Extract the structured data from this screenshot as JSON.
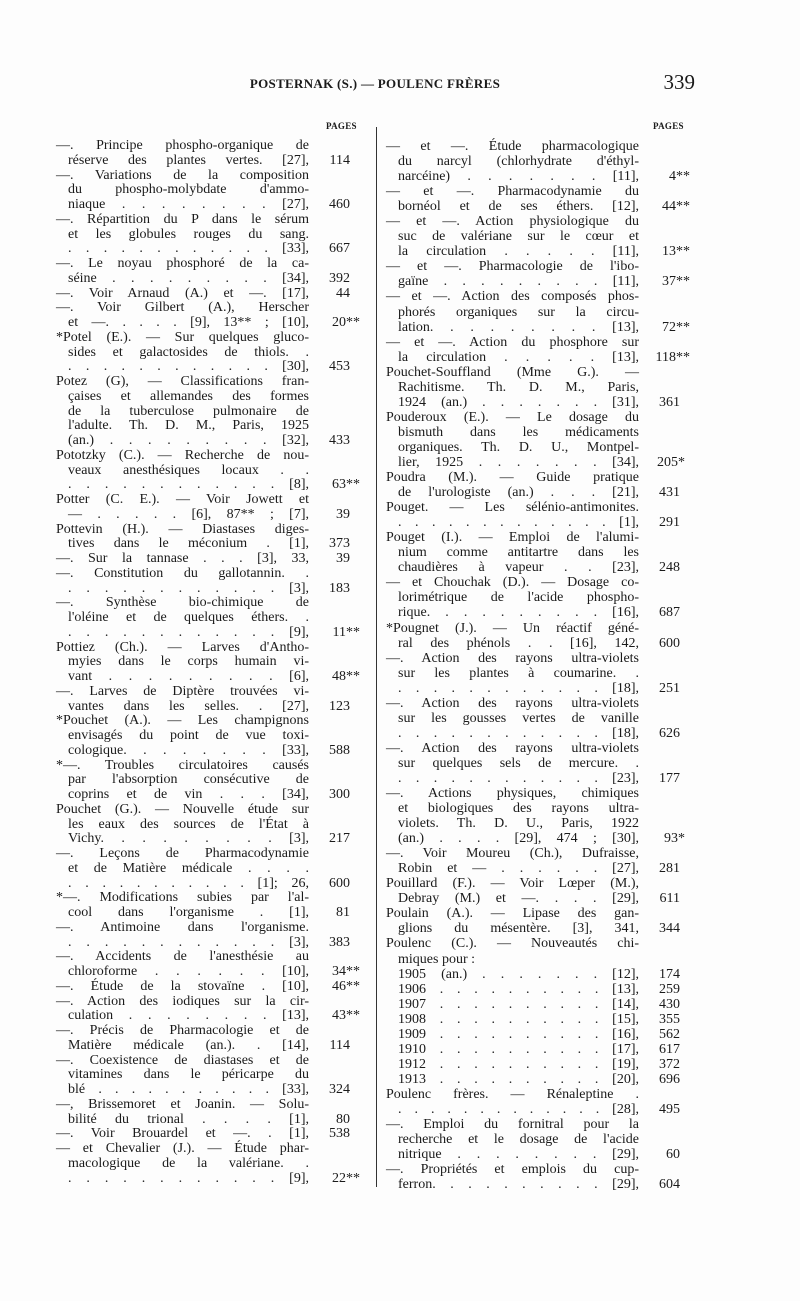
{
  "header": {
    "title": "POSTERNAK (S.) — POULENC FRÈRES",
    "page_number": "339"
  },
  "pages_label": "PAGES",
  "left_column": [
    {
      "lines": [
        "—. Principe phospho-organique de",
        "réserve des plantes vertes. [27],"
      ],
      "page": "114"
    },
    {
      "lines": [
        "—. Variations de la composition",
        "du phospho-molybdate d'ammo-",
        "niaque . . . . . . . . [27],"
      ],
      "page": "460"
    },
    {
      "lines": [
        "—. Répartition du P dans le sérum",
        "et les globules rouges du sang.",
        ". . . . . . . . . . . . [33],"
      ],
      "page": "667"
    },
    {
      "lines": [
        "—. Le noyau phosphoré de la ca-",
        "séine . . . . . . . . . [34],"
      ],
      "page": "392"
    },
    {
      "lines": [
        "—. Voir Arnaud (A.) et —. [17],"
      ],
      "page": "44"
    },
    {
      "lines": [
        "—. Voir Gilbert (A.), Herscher",
        "et —. . . . . [9], 13** ; [10],"
      ],
      "page": "20**"
    },
    {
      "lines": [
        "*Potel (E.). — Sur quelques gluco-",
        "sides et galactosides de thiols. .",
        ". . . . . . . . . . . . [30],"
      ],
      "page": "453"
    },
    {
      "lines": [
        "Potez (G), — Classifications fran-",
        "çaises et allemandes des formes",
        "de la tuberculose pulmonaire de",
        "l'adulte. Th. D. M., Paris, 1925",
        "(an.) . . . . . . . . . [32],"
      ],
      "page": "433"
    },
    {
      "lines": [
        "Pototzky (C.). — Recherche de nou-",
        "veaux anesthésiques locaux . .",
        ". . . . . . . . . . . . [8],"
      ],
      "page": "63**"
    },
    {
      "lines": [
        "Potter (C. E.). — Voir Jowett et",
        "— . . . . . [6], 87** ; [7],"
      ],
      "page": "39"
    },
    {
      "lines": [
        "Pottevin (H.). — Diastases diges-",
        "tives dans le méconium . [1],"
      ],
      "page": "373"
    },
    {
      "lines": [
        "—. Sur la tannase . . . [3], 33,"
      ],
      "page": "39"
    },
    {
      "lines": [
        "—. Constitution du gallotannin. .",
        ". . . . . . . . . . . . [3],"
      ],
      "page": "183"
    },
    {
      "lines": [
        "—. Synthèse bio-chimique de",
        "l'oléine et de quelques éthers. .",
        ". . . . . . . . . . . . [9],"
      ],
      "page": "11**"
    },
    {
      "lines": [
        "Pottiez (Ch.). — Larves d'Antho-",
        "myies dans le corps humain vi-",
        "vant . . . . . . . . . [6],"
      ],
      "page": "48**"
    },
    {
      "lines": [
        "—. Larves de Diptère trouvées vi-",
        "vantes dans les selles. . [27],"
      ],
      "page": "123"
    },
    {
      "lines": [
        "*Pouchet (A.). — Les champignons",
        "envisagés du point de vue toxi-",
        "cologique. . . . . . . . [33],"
      ],
      "page": "588"
    },
    {
      "lines": [
        "*—. Troubles circulatoires causés",
        "par l'absorption consécutive de",
        "coprins et de vin . . . [34],"
      ],
      "page": "300"
    },
    {
      "lines": [
        "Pouchet (G.). — Nouvelle étude sur",
        "les eaux des sources de l'État à",
        "Vichy. . . . . . . . . [3],"
      ],
      "page": "217"
    },
    {
      "lines": [
        "—. Leçons de Pharmacodynamie",
        "et de Matière médicale . . . .",
        ". . . . . . . . . . . [1]; 26,"
      ],
      "page": "600"
    },
    {
      "lines": [
        "*—. Modifications subies par l'al-",
        "cool dans l'organisme . [1],"
      ],
      "page": "81"
    },
    {
      "lines": [
        "—. Antimoine dans l'organisme.",
        ". . . . . . . . . . . . [3],"
      ],
      "page": "383"
    },
    {
      "lines": [
        "—. Accidents de l'anesthésie au",
        "chloroforme . . . . . . [10],"
      ],
      "page": "34**"
    },
    {
      "lines": [
        "—. Étude de la stovaïne . [10],"
      ],
      "page": "46**"
    },
    {
      "lines": [
        "—. Action des iodiques sur la cir-",
        "culation . . . . . . . . [13],"
      ],
      "page": "43**"
    },
    {
      "lines": [
        "—. Précis de Pharmacologie et de",
        "Matière médicale (an.). . [14],"
      ],
      "page": "114"
    },
    {
      "lines": [
        "—. Coexistence de diastases et de",
        "vitamines dans le péricarpe du",
        "blé . . . . . . . . . . . [33],"
      ],
      "page": "324"
    },
    {
      "lines": [
        "—, Brissemoret et Joanin. — Solu-",
        "bilité du trional . . . . [1],"
      ],
      "page": "80"
    },
    {
      "lines": [
        "—. Voir Brouardel et —. . [1],"
      ],
      "page": "538"
    },
    {
      "lines": [
        "— et Chevalier (J.). — Étude phar-",
        "macologique de la valériane. .",
        ". . . . . . . . . . . . [9],"
      ],
      "page": "22**"
    }
  ],
  "right_column": [
    {
      "lines": [
        "— et —. Étude pharmacologique",
        "du narcyl (chlorhydrate d'éthyl-",
        "narcéine) . . . . . . . [11],"
      ],
      "page": "4**"
    },
    {
      "lines": [
        "— et —. Pharmacodynamie du",
        "bornéol et de ses éthers. [12],"
      ],
      "page": "44**"
    },
    {
      "lines": [
        "— et —. Action physiologique du",
        "suc de valériane sur le cœur et",
        "la circulation . . . . . [11],"
      ],
      "page": "13**"
    },
    {
      "lines": [
        "— et —. Pharmacologie de l'ibo-",
        "gaïne . . . . . . . . . [11],"
      ],
      "page": "37**"
    },
    {
      "lines": [
        "— et —. Action des composés phos-",
        "phorés organiques sur la circu-",
        "lation. . . . . . . . . [13],"
      ],
      "page": "72**"
    },
    {
      "lines": [
        "— et —. Action du phosphore sur",
        "la circulation . . . . . [13],"
      ],
      "page": "118**"
    },
    {
      "lines": [
        "Pouchet-Souffland (Mme G.). —",
        "Rachitisme. Th. D. M., Paris,",
        "1924 (an.) . . . . . . . [31],"
      ],
      "page": "361"
    },
    {
      "lines": [
        "Pouderoux (E.). — Le dosage du",
        "bismuth dans les médicaments",
        "organiques. Th. D. U., Montpel-",
        "lier, 1925 . . . . . . . [34],"
      ],
      "page": "205*"
    },
    {
      "lines": [
        "Poudra (M.). — Guide pratique",
        "de l'urologiste (an.) . . . [21],"
      ],
      "page": "431"
    },
    {
      "lines": [
        "Pouget. — Les sélénio-antimonites.",
        ". . . . . . . . . . . . . [1],"
      ],
      "page": "291"
    },
    {
      "lines": [
        "Pouget (I.). — Emploi de l'alumi-",
        "nium comme antitartre dans les",
        "chaudières à vapeur . . [23],"
      ],
      "page": "248"
    },
    {
      "lines": [
        "— et Chouchak (D.). — Dosage co-",
        "lorimétrique de l'acide phospho-",
        "rique. . . . . . . . . . [16],"
      ],
      "page": "687"
    },
    {
      "lines": [
        "*Pougnet (J.). — Un réactif géné-",
        "ral des phénols . . [16], 142,"
      ],
      "page": "600"
    },
    {
      "lines": [
        "—. Action des rayons ultra-violets",
        "sur les plantes à coumarine. .",
        ". . . . . . . . . . . . [18],"
      ],
      "page": "251"
    },
    {
      "lines": [
        "—. Action des rayons ultra-violets",
        "sur les gousses vertes de vanille",
        ". . . . . . . . . . . . [18],"
      ],
      "page": "626"
    },
    {
      "lines": [
        "—. Action des rayons ultra-violets",
        "sur quelques sels de mercure. .",
        ". . . . . . . . . . . . [23],"
      ],
      "page": "177"
    },
    {
      "lines": [
        "—. Actions physiques, chimiques",
        "et biologiques des rayons ultra-",
        "violets. Th. D. U., Paris, 1922",
        "(an.) . . . . [29], 474 ; [30],"
      ],
      "page": "93*"
    },
    {
      "lines": [
        "—. Voir Moureu (Ch.), Dufraisse,",
        "Robin et — . . . . . . [27],"
      ],
      "page": "281"
    },
    {
      "lines": [
        "Pouillard (F.). — Voir Lœper (M.),",
        "Debray (M.) et —. . . . [29],"
      ],
      "page": "611"
    },
    {
      "lines": [
        "Poulain (A.). — Lipase des gan-",
        "glions du mésentère. [3], 341,"
      ],
      "page": "344"
    },
    {
      "lines": [
        "Poulenc (C.). — Nouveautés chi-",
        "miques pour :"
      ],
      "page": ""
    },
    {
      "lines": [
        "1905 (an.) . . . . . . . [12],"
      ],
      "page": "174",
      "sub": true
    },
    {
      "lines": [
        "1906 . . . . . . . . . . [13],"
      ],
      "page": "259",
      "sub": true
    },
    {
      "lines": [
        "1907 . . . . . . . . . . [14],"
      ],
      "page": "430",
      "sub": true
    },
    {
      "lines": [
        "1908 . . . . . . . . . . [15],"
      ],
      "page": "355",
      "sub": true
    },
    {
      "lines": [
        "1909 . . . . . . . . . . [16],"
      ],
      "page": "562",
      "sub": true
    },
    {
      "lines": [
        "1910 . . . . . . . . . . [17],"
      ],
      "page": "617",
      "sub": true
    },
    {
      "lines": [
        "1912 . . . . . . . . . . [19],"
      ],
      "page": "372",
      "sub": true
    },
    {
      "lines": [
        "1913 . . . . . . . . . . [20],"
      ],
      "page": "696",
      "sub": true
    },
    {
      "lines": [
        "Poulenc frères. — Rénaleptine .",
        ". . . . . . . . . . . . . [28],"
      ],
      "page": "495"
    },
    {
      "lines": [
        "—. Emploi du fornitral pour la",
        "recherche et le dosage de l'acide",
        "nitrique . . . . . . . . [29],"
      ],
      "page": "60"
    },
    {
      "lines": [
        "—. Propriétés et emplois du cup-",
        "ferron. . . . . . . . . . [29],"
      ],
      "page": "604"
    }
  ]
}
